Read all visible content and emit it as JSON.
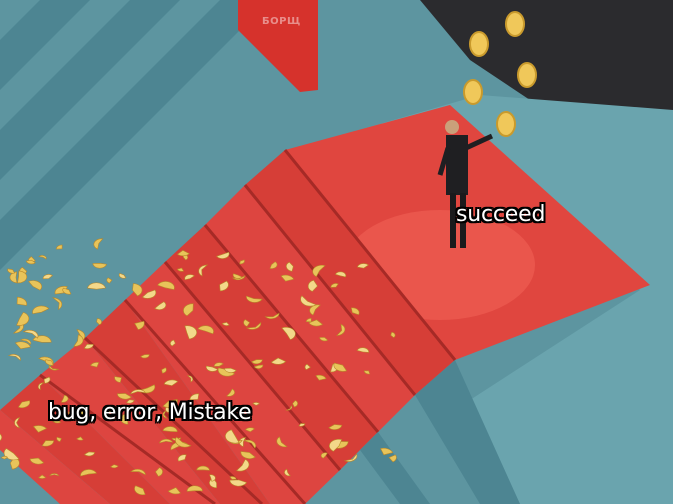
{
  "image": {
    "watermark": "БОРЩ",
    "colors": {
      "teal": "#5d95a0",
      "teal_dark": "#3f7480",
      "red_carpet": "#e0463f",
      "red_dark": "#b8312c",
      "gold": "#e8c45a",
      "crowd": "#2a2a2c"
    }
  },
  "captions": {
    "success": "succeed",
    "failure": "bug, error, Mistake"
  }
}
